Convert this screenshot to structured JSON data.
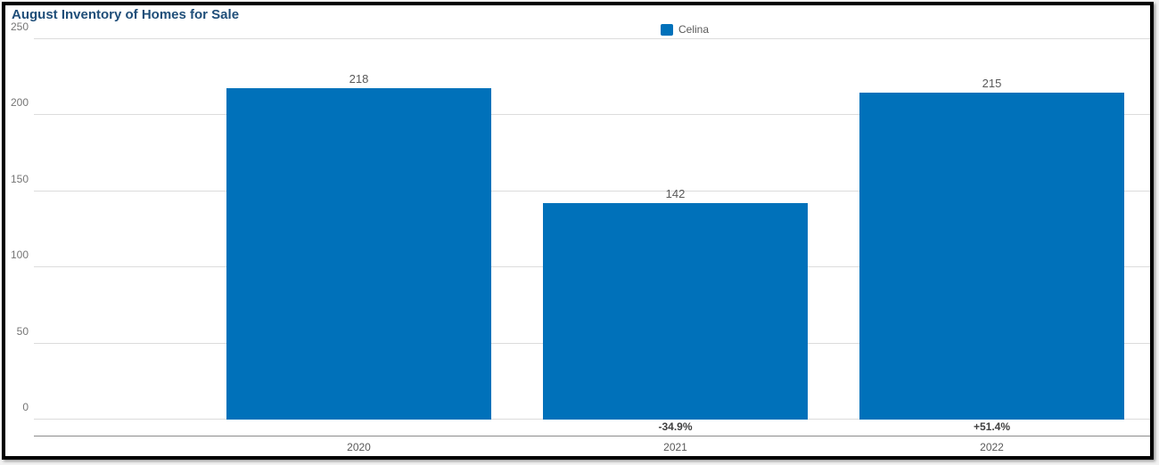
{
  "panel": {
    "background": "#ffffff",
    "border_color": "#000000"
  },
  "chart_data": {
    "type": "bar",
    "title": "August Inventory of Homes for Sale",
    "categories": [
      "2020",
      "2021",
      "2022"
    ],
    "series": [
      {
        "name": "Celina",
        "values": [
          218,
          142,
          215
        ]
      }
    ],
    "data_labels": [
      "218",
      "142",
      "215"
    ],
    "change_labels": [
      "",
      "-34.9%",
      "+51.4%"
    ],
    "ylim": [
      0,
      250
    ],
    "yticks": [
      0,
      50,
      100,
      150,
      200,
      250
    ],
    "ytick_labels": [
      "0",
      "50",
      "100",
      "150",
      "200",
      "250"
    ],
    "xlabel": "",
    "ylabel": "",
    "grid": "horizontal",
    "legend_position": "top-center",
    "colors": {
      "bar": "#0071BA",
      "title": "#1F4E79",
      "value_label": "#595959",
      "change_label": "#404040",
      "tick_label": "#757575",
      "gridline": "#dcdcdc"
    }
  }
}
